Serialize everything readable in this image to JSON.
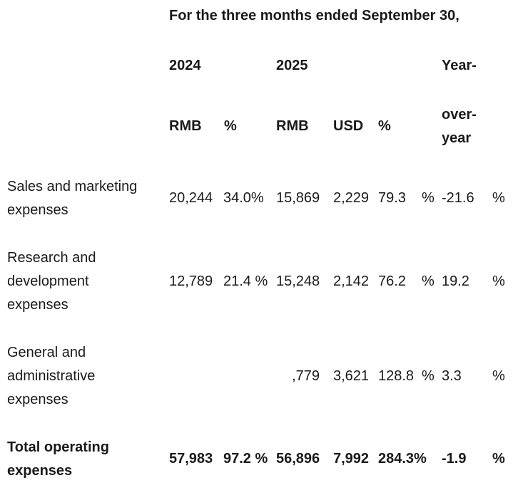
{
  "header": {
    "period": "For the three months ended September 30,",
    "year_2024": "2024",
    "year_2025": "2025",
    "yoy_line1": "Year-",
    "yoy_line2": "over-",
    "yoy_line3": "year",
    "col_rmb_2024": "RMB",
    "col_pct_2024": "%",
    "col_rmb_2025": "RMB",
    "col_usd_2025": "USD",
    "col_pct_2025": "%"
  },
  "rows": [
    {
      "label_lines": [
        "Sales and marketing",
        "expenses"
      ],
      "rmb_2024": "20,244",
      "pct_2024": "34.0%",
      "rmb_2025": "15,869",
      "usd_2025": "2,229",
      "pct_2025": "79.3",
      "pct_2025_sign": "%",
      "yoy": "-21.6",
      "yoy_sign": "%"
    },
    {
      "label_lines": [
        "Research and",
        "development",
        "expenses"
      ],
      "rmb_2024": "12,789",
      "pct_2024": "21.4 %",
      "rmb_2025": "15,248",
      "usd_2025": "2,142",
      "pct_2025": "76.2",
      "pct_2025_sign": "%",
      "yoy": "19.2",
      "yoy_sign": "%"
    },
    {
      "label_lines": [
        "General and",
        "administrative",
        "expenses"
      ],
      "rmb_2025": ",779",
      "usd_2025": "3,621",
      "pct_2025": "128.8",
      "pct_2025_sign": "%",
      "yoy": "3.3",
      "yoy_sign": "%"
    },
    {
      "label_lines": [
        "Total operating",
        "expenses"
      ],
      "rmb_2024": "57,983",
      "pct_2024": "97.2 %",
      "rmb_2025": "56,896",
      "usd_2025": "7,992",
      "pct_2025": "284.3%",
      "yoy": "-1.9",
      "yoy_sign": "%"
    }
  ]
}
